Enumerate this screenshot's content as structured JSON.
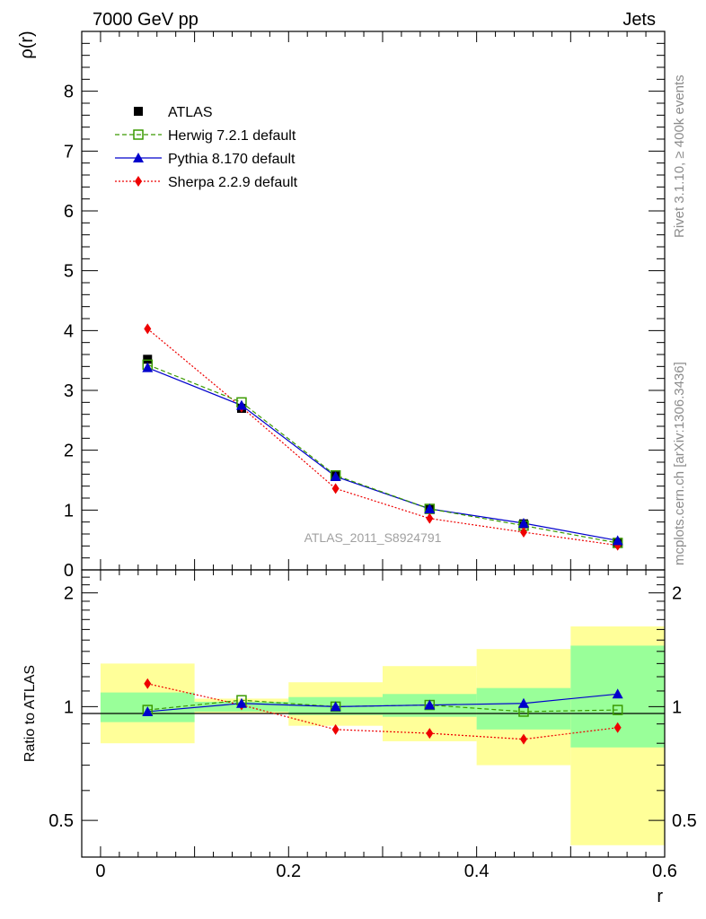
{
  "header": {
    "left": "7000 GeV pp",
    "right": "Jets"
  },
  "side_text": {
    "top": "Rivet 3.1.10, ≥ 400k events",
    "bottom": "mcplots.cern.ch [arXiv:1306.3436]"
  },
  "watermark": "ATLAS_2011_S8924791",
  "colors": {
    "herwig": "#3a9a00",
    "pythia": "#0000cc",
    "sherpa": "#ee0000",
    "band_inner": "#99ff99",
    "band_outer": "#ffff99",
    "data": "#000000"
  },
  "chart_data": [
    {
      "type": "line",
      "ylabel": "ρ(r)",
      "xlim": [
        -0.02,
        0.6
      ],
      "ylim": [
        0,
        9
      ],
      "y_ticks": [
        {
          "v": 0,
          "label": "0"
        },
        {
          "v": 1,
          "label": "1"
        },
        {
          "v": 2,
          "label": "2"
        },
        {
          "v": 3,
          "label": "3"
        },
        {
          "v": 4,
          "label": "4"
        },
        {
          "v": 5,
          "label": "5"
        },
        {
          "v": 6,
          "label": "6"
        },
        {
          "v": 7,
          "label": "7"
        },
        {
          "v": 8,
          "label": "8"
        }
      ],
      "legend_position": "top-left",
      "x": [
        0.05,
        0.15,
        0.25,
        0.35,
        0.45,
        0.55
      ],
      "series": [
        {
          "name": "ATLAS",
          "key": "atlas",
          "values": [
            3.52,
            2.7,
            1.57,
            1.01,
            0.77,
            0.46
          ]
        },
        {
          "name": "Herwig 7.2.1 default",
          "key": "herwig",
          "values": [
            3.43,
            2.8,
            1.58,
            1.02,
            0.74,
            0.45
          ]
        },
        {
          "name": "Pythia 8.170 default",
          "key": "pythia",
          "values": [
            3.38,
            2.75,
            1.56,
            1.02,
            0.78,
            0.49
          ]
        },
        {
          "name": "Sherpa 2.2.9 default",
          "key": "sherpa",
          "values": [
            4.03,
            2.72,
            1.36,
            0.86,
            0.63,
            0.41
          ]
        }
      ]
    },
    {
      "type": "line",
      "ylabel": "Ratio to ATLAS",
      "xlabel": "r",
      "scale": "log",
      "xlim": [
        -0.02,
        0.6
      ],
      "ylim": [
        0.4,
        2.3
      ],
      "x_ticks": [
        {
          "v": 0,
          "label": "0"
        },
        {
          "v": 0.2,
          "label": "0.2"
        },
        {
          "v": 0.4,
          "label": "0.4"
        },
        {
          "v": 0.6,
          "label": "0.6"
        }
      ],
      "y_ticks": [
        {
          "v": 0.5,
          "label": "0.5"
        },
        {
          "v": 1,
          "label": "1"
        },
        {
          "v": 2,
          "label": "2"
        }
      ],
      "bins": [
        [
          0.0,
          0.1
        ],
        [
          0.1,
          0.2
        ],
        [
          0.2,
          0.3
        ],
        [
          0.3,
          0.4
        ],
        [
          0.4,
          0.5
        ],
        [
          0.5,
          0.6
        ]
      ],
      "band_inner": [
        [
          0.91,
          1.09
        ],
        [
          0.97,
          1.03
        ],
        [
          0.95,
          1.06
        ],
        [
          0.94,
          1.08
        ],
        [
          0.87,
          1.12
        ],
        [
          0.78,
          1.45
        ]
      ],
      "band_outer": [
        [
          0.8,
          1.3
        ],
        [
          0.96,
          1.05
        ],
        [
          0.89,
          1.16
        ],
        [
          0.81,
          1.28
        ],
        [
          0.7,
          1.42
        ],
        [
          0.43,
          1.63
        ]
      ],
      "x": [
        0.05,
        0.15,
        0.25,
        0.35,
        0.45,
        0.55
      ],
      "series": [
        {
          "name": "Herwig 7.2.1 default",
          "key": "herwig",
          "values": [
            0.98,
            1.04,
            1.0,
            1.01,
            0.97,
            0.98
          ]
        },
        {
          "name": "Pythia 8.170 default",
          "key": "pythia",
          "values": [
            0.97,
            1.02,
            1.0,
            1.01,
            1.02,
            1.08
          ]
        },
        {
          "name": "Sherpa 2.2.9 default",
          "key": "sherpa",
          "values": [
            1.15,
            1.01,
            0.87,
            0.85,
            0.82,
            0.88
          ]
        }
      ]
    }
  ]
}
